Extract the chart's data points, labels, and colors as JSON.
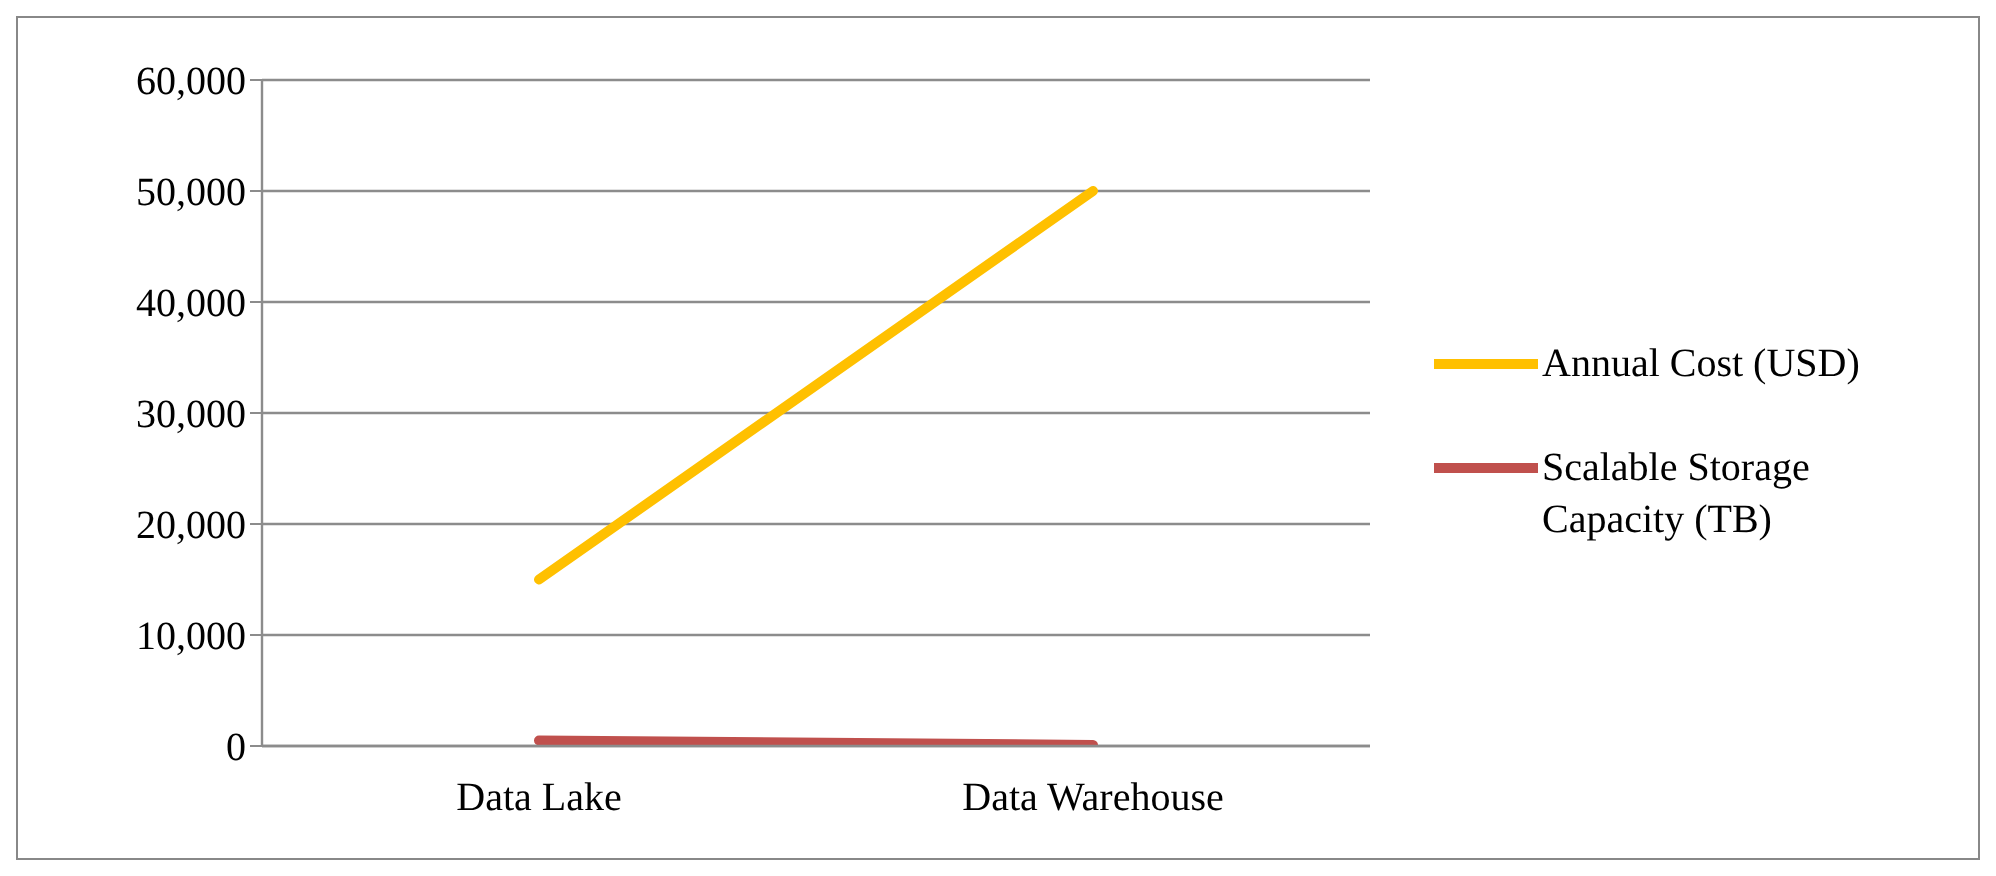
{
  "chart_data": {
    "type": "line",
    "categories": [
      "Data Lake",
      "Data Warehouse"
    ],
    "series": [
      {
        "name": "Annual Cost (USD)",
        "color": "#ffc000",
        "values": [
          15000,
          50000
        ]
      },
      {
        "name": "Scalable Storage Capacity (TB)",
        "color": "#c0504d",
        "values": [
          500,
          100
        ]
      }
    ],
    "ylim": [
      0,
      60000
    ],
    "yticks": [
      {
        "value": 0,
        "label": "0"
      },
      {
        "value": 10000,
        "label": "10,000"
      },
      {
        "value": 20000,
        "label": "20,000"
      },
      {
        "value": 30000,
        "label": "30,000"
      },
      {
        "value": 40000,
        "label": "40,000"
      },
      {
        "value": 50000,
        "label": "50,000"
      },
      {
        "value": 60000,
        "label": "60,000"
      }
    ],
    "grid": "y",
    "legend": "right",
    "marker": "none",
    "line_style": "solid"
  }
}
